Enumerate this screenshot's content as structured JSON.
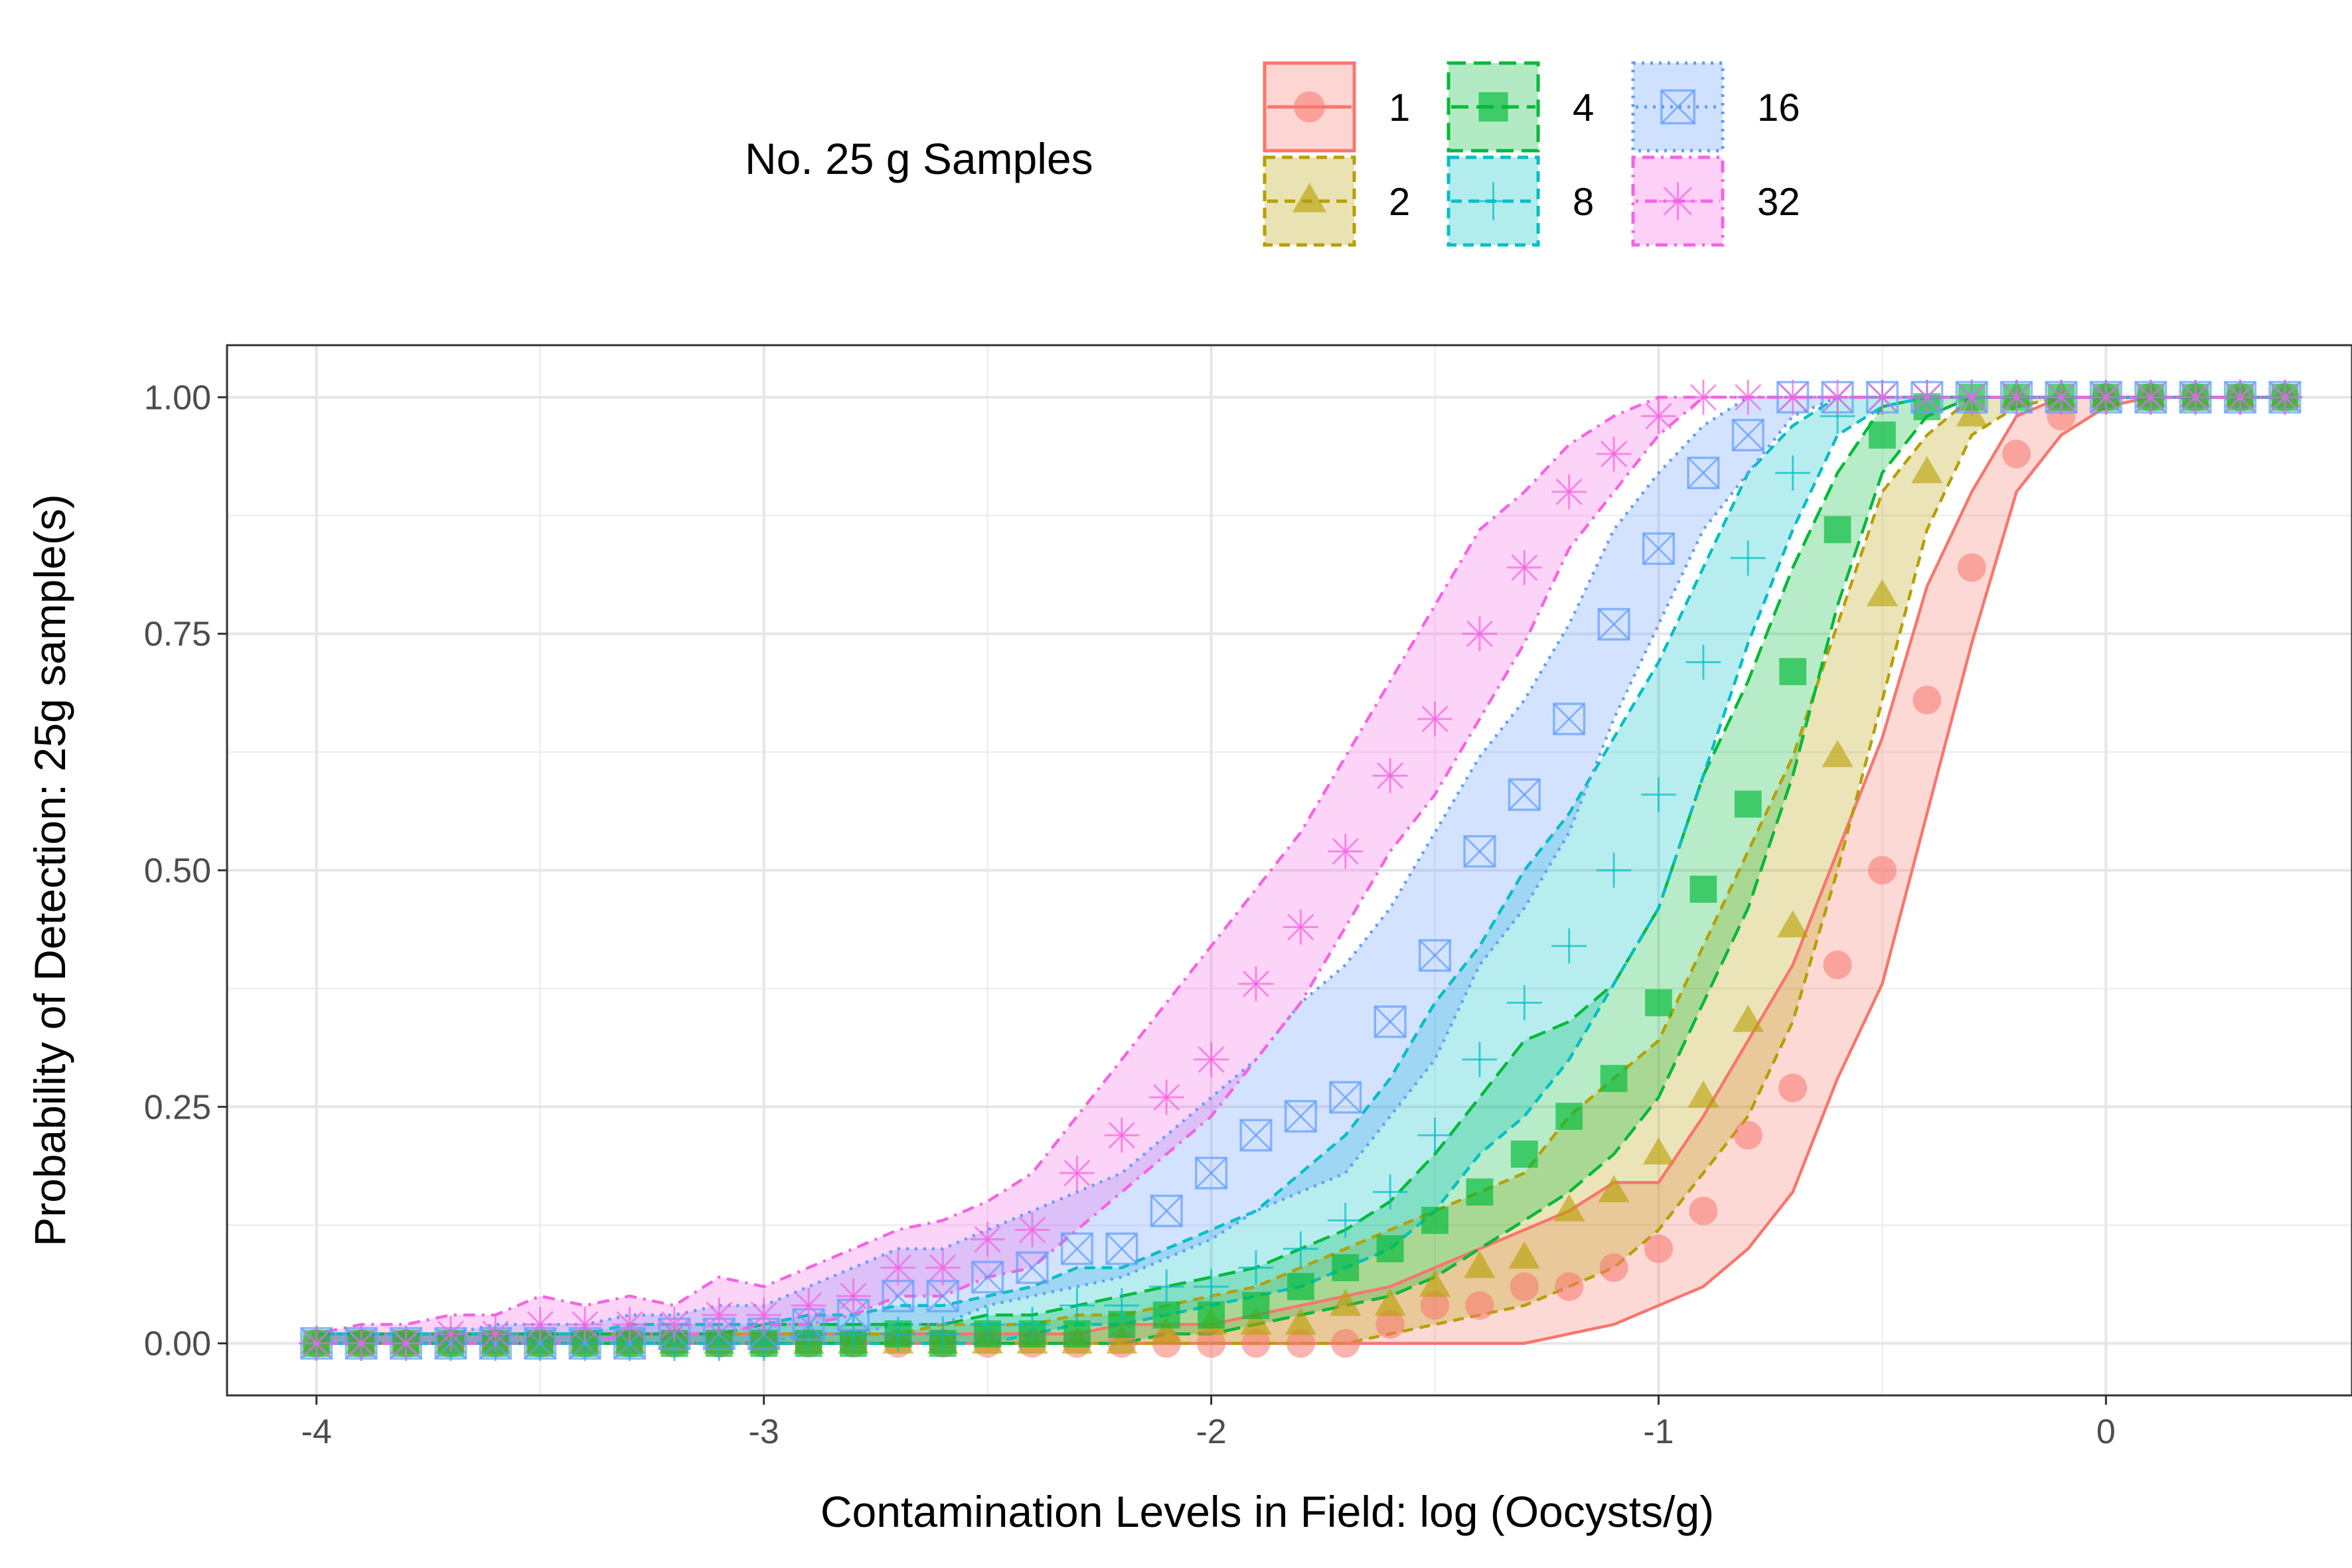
{
  "chart_data": {
    "type": "line",
    "xlabel": "Contamination Levels in Field: log (Oocysts/g)",
    "ylabel": "Probability of Detection: 25g sample(s)",
    "xlim": [
      -4.2,
      0.55
    ],
    "ylim": [
      -0.055,
      1.055
    ],
    "xticks": [
      -4,
      -3,
      -2,
      -1,
      0
    ],
    "xtick_labels": [
      "-4",
      "-3",
      "-2",
      "-1",
      "0"
    ],
    "yticks": [
      0,
      0.25,
      0.5,
      0.75,
      1
    ],
    "ytick_labels": [
      "0.00",
      "0.25",
      "0.50",
      "0.75",
      "1.00"
    ],
    "grid": true,
    "legend": {
      "title": "No. 25 g Samples",
      "position": "top"
    },
    "x": [
      -4.0,
      -3.9,
      -3.8,
      -3.7,
      -3.6,
      -3.5,
      -3.4,
      -3.3,
      -3.2,
      -3.1,
      -3.0,
      -2.9,
      -2.8,
      -2.7,
      -2.6,
      -2.5,
      -2.4,
      -2.3,
      -2.2,
      -2.1,
      -2.0,
      -1.9,
      -1.8,
      -1.7,
      -1.6,
      -1.5,
      -1.4,
      -1.3,
      -1.2,
      -1.1,
      -1.0,
      -0.9,
      -0.8,
      -0.7,
      -0.6,
      -0.5,
      -0.4,
      -0.3,
      -0.2,
      -0.1,
      0.0,
      0.1,
      0.2,
      0.3,
      0.4
    ],
    "series": [
      {
        "name": "1",
        "color": "#F8766D",
        "marker": "circle",
        "dash": "solid",
        "values": [
          0,
          0,
          0,
          0,
          0,
          0,
          0,
          0,
          0,
          0,
          0,
          0,
          0,
          0,
          0,
          0,
          0,
          0,
          0,
          0,
          0,
          0,
          0,
          0,
          0.02,
          0.04,
          0.04,
          0.06,
          0.06,
          0.08,
          0.1,
          0.14,
          0.22,
          0.27,
          0.4,
          0.5,
          0.68,
          0.82,
          0.94,
          0.98,
          1,
          1,
          1,
          1,
          1
        ],
        "lower": [
          0,
          0,
          0,
          0,
          0,
          0,
          0,
          0,
          0,
          0,
          0,
          0,
          0,
          0,
          0,
          0,
          0,
          0,
          0,
          0,
          0,
          0,
          0,
          0,
          0,
          0,
          0,
          0,
          0.01,
          0.02,
          0.04,
          0.06,
          0.1,
          0.16,
          0.28,
          0.38,
          0.56,
          0.74,
          0.9,
          0.96,
          0.99,
          1,
          1,
          1,
          1
        ],
        "upper": [
          0.01,
          0.01,
          0.01,
          0.01,
          0.01,
          0.01,
          0.01,
          0.01,
          0.01,
          0.01,
          0.01,
          0.01,
          0.01,
          0.01,
          0.01,
          0.01,
          0.01,
          0.01,
          0.02,
          0.02,
          0.02,
          0.03,
          0.04,
          0.05,
          0.06,
          0.08,
          0.1,
          0.12,
          0.14,
          0.17,
          0.17,
          0.24,
          0.32,
          0.4,
          0.52,
          0.64,
          0.8,
          0.9,
          0.98,
          1,
          1,
          1,
          1,
          1,
          1
        ]
      },
      {
        "name": "2",
        "color": "#B79F00",
        "marker": "triangle",
        "dash": "dashed",
        "values": [
          0,
          0,
          0,
          0,
          0,
          0,
          0,
          0,
          0,
          0,
          0,
          0,
          0,
          0,
          0,
          0,
          0,
          0,
          0,
          0.01,
          0.02,
          0.02,
          0.02,
          0.04,
          0.04,
          0.06,
          0.08,
          0.09,
          0.14,
          0.16,
          0.2,
          0.26,
          0.34,
          0.44,
          0.62,
          0.79,
          0.92,
          0.98,
          1,
          1,
          1,
          1,
          1,
          1,
          1
        ],
        "lower": [
          0,
          0,
          0,
          0,
          0,
          0,
          0,
          0,
          0,
          0,
          0,
          0,
          0,
          0,
          0,
          0,
          0,
          0,
          0,
          0,
          0,
          0,
          0,
          0,
          0.01,
          0.02,
          0.03,
          0.04,
          0.06,
          0.08,
          0.12,
          0.18,
          0.24,
          0.34,
          0.5,
          0.68,
          0.86,
          0.96,
          0.99,
          1,
          1,
          1,
          1,
          1,
          1
        ],
        "upper": [
          0.01,
          0.01,
          0.01,
          0.01,
          0.01,
          0.01,
          0.01,
          0.01,
          0.01,
          0.01,
          0.01,
          0.01,
          0.01,
          0.01,
          0.02,
          0.02,
          0.02,
          0.03,
          0.03,
          0.04,
          0.05,
          0.06,
          0.08,
          0.1,
          0.12,
          0.14,
          0.16,
          0.18,
          0.24,
          0.28,
          0.32,
          0.42,
          0.52,
          0.62,
          0.76,
          0.9,
          0.96,
          1,
          1,
          1,
          1,
          1,
          1,
          1,
          1
        ]
      },
      {
        "name": "4",
        "color": "#00BA38",
        "marker": "square",
        "dash": "longdash",
        "values": [
          0,
          0,
          0,
          0,
          0,
          0,
          0,
          0,
          0,
          0,
          0,
          0,
          0,
          0.01,
          0,
          0.01,
          0.01,
          0.01,
          0.02,
          0.03,
          0.03,
          0.04,
          0.06,
          0.08,
          0.1,
          0.13,
          0.16,
          0.2,
          0.24,
          0.28,
          0.36,
          0.48,
          0.57,
          0.71,
          0.86,
          0.96,
          0.99,
          1,
          1,
          1,
          1,
          1,
          1,
          1,
          1
        ],
        "lower": [
          0,
          0,
          0,
          0,
          0,
          0,
          0,
          0,
          0,
          0,
          0,
          0,
          0,
          0,
          0,
          0,
          0,
          0,
          0,
          0.01,
          0.01,
          0.02,
          0.03,
          0.04,
          0.05,
          0.07,
          0.1,
          0.13,
          0.16,
          0.2,
          0.26,
          0.36,
          0.46,
          0.6,
          0.78,
          0.92,
          0.98,
          1,
          1,
          1,
          1,
          1,
          1,
          1,
          1
        ],
        "upper": [
          0.01,
          0.01,
          0.01,
          0.01,
          0.01,
          0.01,
          0.01,
          0.01,
          0.01,
          0.01,
          0.02,
          0.02,
          0.02,
          0.02,
          0.02,
          0.03,
          0.03,
          0.04,
          0.05,
          0.06,
          0.07,
          0.08,
          0.1,
          0.12,
          0.15,
          0.2,
          0.26,
          0.32,
          0.34,
          0.38,
          0.46,
          0.6,
          0.7,
          0.82,
          0.92,
          0.99,
          1,
          1,
          1,
          1,
          1,
          1,
          1,
          1,
          1
        ]
      },
      {
        "name": "8",
        "color": "#00BFC4",
        "marker": "plus",
        "dash": "dashed",
        "values": [
          0,
          0,
          0,
          0,
          0,
          0,
          0,
          0,
          0,
          0,
          0,
          0.01,
          0.01,
          0.01,
          0.01,
          0.02,
          0.02,
          0.04,
          0.04,
          0.06,
          0.06,
          0.08,
          0.1,
          0.13,
          0.16,
          0.22,
          0.3,
          0.36,
          0.42,
          0.5,
          0.58,
          0.72,
          0.83,
          0.92,
          0.98,
          1,
          1,
          1,
          1,
          1,
          1,
          1,
          1,
          1,
          1
        ],
        "lower": [
          0,
          0,
          0,
          0,
          0,
          0,
          0,
          0,
          0,
          0,
          0,
          0,
          0,
          0,
          0,
          0,
          0.01,
          0.02,
          0.02,
          0.03,
          0.04,
          0.05,
          0.06,
          0.08,
          0.1,
          0.14,
          0.2,
          0.24,
          0.3,
          0.38,
          0.46,
          0.6,
          0.74,
          0.86,
          0.96,
          0.99,
          1,
          1,
          1,
          1,
          1,
          1,
          1,
          1,
          1
        ],
        "upper": [
          0.01,
          0.01,
          0.01,
          0.01,
          0.01,
          0.01,
          0.01,
          0.02,
          0.02,
          0.02,
          0.02,
          0.03,
          0.03,
          0.04,
          0.04,
          0.05,
          0.06,
          0.08,
          0.08,
          0.1,
          0.12,
          0.14,
          0.18,
          0.22,
          0.28,
          0.36,
          0.42,
          0.5,
          0.56,
          0.64,
          0.72,
          0.82,
          0.92,
          0.97,
          1,
          1,
          1,
          1,
          1,
          1,
          1,
          1,
          1,
          1,
          1
        ]
      },
      {
        "name": "16",
        "color": "#619CFF",
        "marker": "squarecross",
        "dash": "dotted",
        "values": [
          0,
          0,
          0,
          0,
          0,
          0,
          0,
          0,
          0.01,
          0.01,
          0.01,
          0.02,
          0.03,
          0.05,
          0.05,
          0.07,
          0.08,
          0.1,
          0.1,
          0.14,
          0.18,
          0.22,
          0.24,
          0.26,
          0.34,
          0.41,
          0.52,
          0.58,
          0.66,
          0.76,
          0.84,
          0.92,
          0.96,
          1,
          1,
          1,
          1,
          1,
          1,
          1,
          1,
          1,
          1,
          1,
          1
        ],
        "lower": [
          0,
          0,
          0,
          0,
          0,
          0,
          0,
          0,
          0,
          0,
          0,
          0.01,
          0.01,
          0.02,
          0.02,
          0.04,
          0.05,
          0.06,
          0.07,
          0.09,
          0.11,
          0.14,
          0.16,
          0.18,
          0.24,
          0.3,
          0.4,
          0.46,
          0.54,
          0.66,
          0.76,
          0.86,
          0.92,
          0.98,
          1,
          1,
          1,
          1,
          1,
          1,
          1,
          1,
          1,
          1,
          1
        ],
        "upper": [
          0.01,
          0.01,
          0.01,
          0.01,
          0.02,
          0.02,
          0.02,
          0.03,
          0.03,
          0.04,
          0.04,
          0.06,
          0.08,
          0.1,
          0.1,
          0.12,
          0.14,
          0.16,
          0.18,
          0.22,
          0.26,
          0.3,
          0.36,
          0.4,
          0.46,
          0.54,
          0.62,
          0.68,
          0.76,
          0.86,
          0.92,
          0.97,
          1,
          1,
          1,
          1,
          1,
          1,
          1,
          1,
          1,
          1,
          1,
          1,
          1
        ]
      },
      {
        "name": "32",
        "color": "#F564E3",
        "marker": "asterisk",
        "dash": "dotdash",
        "values": [
          0,
          0,
          0,
          0.01,
          0.01,
          0.02,
          0.02,
          0.02,
          0.02,
          0.03,
          0.03,
          0.04,
          0.05,
          0.08,
          0.08,
          0.11,
          0.12,
          0.18,
          0.22,
          0.26,
          0.3,
          0.38,
          0.44,
          0.52,
          0.6,
          0.66,
          0.75,
          0.82,
          0.9,
          0.94,
          0.98,
          1,
          1,
          1,
          1,
          1,
          1,
          1,
          1,
          1,
          1,
          1,
          1,
          1,
          1
        ],
        "lower": [
          0,
          0,
          0,
          0,
          0,
          0,
          0,
          0.01,
          0.01,
          0.01,
          0.02,
          0.02,
          0.03,
          0.05,
          0.05,
          0.07,
          0.08,
          0.12,
          0.16,
          0.2,
          0.24,
          0.3,
          0.36,
          0.44,
          0.52,
          0.58,
          0.66,
          0.74,
          0.84,
          0.9,
          0.96,
          1,
          1,
          1,
          1,
          1,
          1,
          1,
          1,
          1,
          1,
          1,
          1,
          1,
          1
        ],
        "upper": [
          0.01,
          0.02,
          0.02,
          0.03,
          0.03,
          0.05,
          0.04,
          0.05,
          0.04,
          0.07,
          0.06,
          0.08,
          0.1,
          0.12,
          0.13,
          0.15,
          0.18,
          0.24,
          0.3,
          0.36,
          0.42,
          0.48,
          0.54,
          0.62,
          0.7,
          0.78,
          0.86,
          0.9,
          0.95,
          0.98,
          1,
          1,
          1,
          1,
          1,
          1,
          1,
          1,
          1,
          1,
          1,
          1,
          1,
          1,
          1
        ]
      }
    ]
  }
}
